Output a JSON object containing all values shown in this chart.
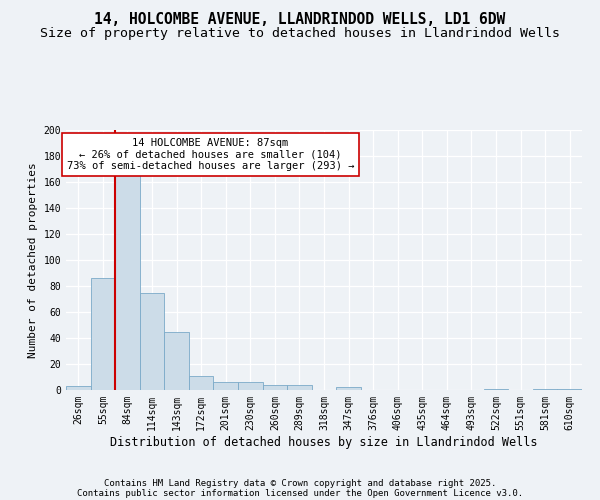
{
  "title": "14, HOLCOMBE AVENUE, LLANDRINDOD WELLS, LD1 6DW",
  "subtitle": "Size of property relative to detached houses in Llandrindod Wells",
  "xlabel": "Distribution of detached houses by size in Llandrindod Wells",
  "ylabel": "Number of detached properties",
  "bar_labels": [
    "26sqm",
    "55sqm",
    "84sqm",
    "114sqm",
    "143sqm",
    "172sqm",
    "201sqm",
    "230sqm",
    "260sqm",
    "289sqm",
    "318sqm",
    "347sqm",
    "376sqm",
    "406sqm",
    "435sqm",
    "464sqm",
    "493sqm",
    "522sqm",
    "551sqm",
    "581sqm",
    "610sqm"
  ],
  "bar_values": [
    3,
    86,
    166,
    75,
    45,
    11,
    6,
    6,
    4,
    4,
    0,
    2,
    0,
    0,
    0,
    0,
    0,
    1,
    0,
    1,
    1
  ],
  "bar_color": "#ccdce8",
  "bar_edge_color": "#7aaac8",
  "highlight_color": "#cc0000",
  "annotation_line1": "14 HOLCOMBE AVENUE: 87sqm",
  "annotation_line2": "← 26% of detached houses are smaller (104)",
  "annotation_line3": "73% of semi-detached houses are larger (293) →",
  "annotation_box_color": "#ffffff",
  "annotation_box_edge": "#cc0000",
  "ylim": [
    0,
    200
  ],
  "yticks": [
    0,
    20,
    40,
    60,
    80,
    100,
    120,
    140,
    160,
    180,
    200
  ],
  "bg_color": "#eef2f6",
  "plot_bg_color": "#eef2f6",
  "grid_color": "#ffffff",
  "footer_line1": "Contains HM Land Registry data © Crown copyright and database right 2025.",
  "footer_line2": "Contains public sector information licensed under the Open Government Licence v3.0.",
  "title_fontsize": 10.5,
  "subtitle_fontsize": 9.5,
  "xlabel_fontsize": 8.5,
  "ylabel_fontsize": 8,
  "tick_fontsize": 7,
  "footer_fontsize": 6.5,
  "annotation_fontsize": 7.5
}
